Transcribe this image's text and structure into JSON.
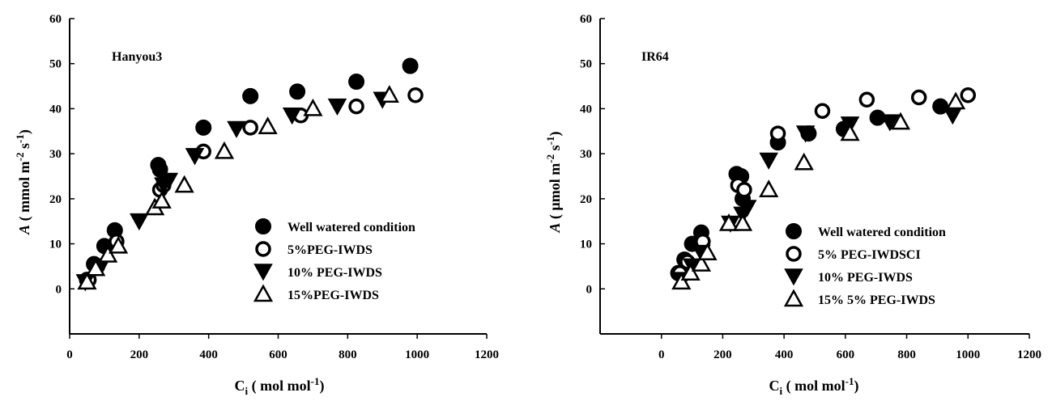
{
  "chart_data": [
    {
      "type": "scatter",
      "title": "Hanyou3",
      "xlabel": "Ci ( mol mol-1)",
      "xlabel_parts": {
        "main": "C",
        "sub": "i",
        "rest": " ( mol mol",
        "sup": "-1",
        "end": ")"
      },
      "ylabel": "A ( mmol m-2 s-1)",
      "ylabel_parts": {
        "italic": "A",
        "main": " ( mmol m",
        "sup1": "-2",
        "mid": " s",
        "sup2": "-1",
        "end": ")"
      },
      "xlim": [
        0,
        1200
      ],
      "ylim": [
        -10,
        60
      ],
      "xticks": [
        "0",
        "200",
        "400",
        "600",
        "800",
        "1000",
        "1200"
      ],
      "yticks": [
        "0",
        "10",
        "20",
        "30",
        "40",
        "50",
        "60"
      ],
      "legend_position": "lower-right",
      "series": [
        {
          "name": "Well watered condition",
          "marker": "filled-circle",
          "points": [
            [
              50,
              2
            ],
            [
              70,
              5.5
            ],
            [
              100,
              9.5
            ],
            [
              130,
              13
            ],
            [
              255,
              27.5
            ],
            [
              260,
              26.5
            ],
            [
              385,
              35.8
            ],
            [
              520,
              42.8
            ],
            [
              655,
              43.8
            ],
            [
              825,
              46
            ],
            [
              980,
              49.5
            ]
          ]
        },
        {
          "name": "5%PEG-IWDS",
          "marker": "open-circle",
          "points": [
            [
              55,
              2
            ],
            [
              80,
              5
            ],
            [
              135,
              10.5
            ],
            [
              260,
              22
            ],
            [
              270,
              23
            ],
            [
              385,
              30.5
            ],
            [
              520,
              35.8
            ],
            [
              665,
              38.5
            ],
            [
              825,
              40.5
            ],
            [
              995,
              43
            ]
          ]
        },
        {
          "name": "10% PEG-IWDS",
          "marker": "filled-triangle-down",
          "points": [
            [
              45,
              1.5
            ],
            [
              90,
              5
            ],
            [
              200,
              15
            ],
            [
              270,
              23
            ],
            [
              285,
              24
            ],
            [
              360,
              29.5
            ],
            [
              480,
              35.5
            ],
            [
              640,
              38.5
            ],
            [
              770,
              40.5
            ],
            [
              900,
              42
            ]
          ]
        },
        {
          "name": "15%PEG-IWDS",
          "marker": "open-triangle-up",
          "points": [
            [
              50,
              1.5
            ],
            [
              75,
              4.5
            ],
            [
              110,
              7.5
            ],
            [
              140,
              9.5
            ],
            [
              245,
              18
            ],
            [
              265,
              19.5
            ],
            [
              330,
              23
            ],
            [
              445,
              30.5
            ],
            [
              570,
              36
            ],
            [
              700,
              40
            ],
            [
              920,
              43
            ]
          ]
        }
      ]
    },
    {
      "type": "scatter",
      "title": "IR64",
      "xlabel": "Ci ( mol mol-1)",
      "xlabel_parts": {
        "main": "C",
        "sub": "i",
        "rest": " ( mol mol",
        "sup": "-1",
        "end": ")"
      },
      "ylabel": "A ( μmol m-2 s-1)",
      "ylabel_parts": {
        "italic": "A",
        "main": " ( μmol m",
        "sup1": "-2",
        "mid": " s",
        "sup2": "-1",
        "end": ")"
      },
      "xlim": [
        -200,
        1200
      ],
      "ylim": [
        -10,
        60
      ],
      "xticks": [
        "0",
        "200",
        "400",
        "600",
        "800",
        "1000",
        "1200"
      ],
      "yticks": [
        "0",
        "10",
        "20",
        "30",
        "40",
        "50",
        "60"
      ],
      "legend_position": "lower-right",
      "series": [
        {
          "name": "Well watered condition",
          "marker": "filled-circle",
          "points": [
            [
              55,
              3.5
            ],
            [
              75,
              6.5
            ],
            [
              100,
              10
            ],
            [
              130,
              12.5
            ],
            [
              245,
              25.5
            ],
            [
              260,
              25
            ],
            [
              265,
              20
            ],
            [
              380,
              32.5
            ],
            [
              480,
              34.5
            ],
            [
              595,
              35.5
            ],
            [
              705,
              38
            ],
            [
              910,
              40.5
            ]
          ]
        },
        {
          "name": "5% PEG-IWDSCI",
          "marker": "open-circle",
          "points": [
            [
              60,
              3.5
            ],
            [
              85,
              6
            ],
            [
              135,
              10.5
            ],
            [
              250,
              23
            ],
            [
              270,
              22
            ],
            [
              380,
              34.5
            ],
            [
              525,
              39.5
            ],
            [
              670,
              42
            ],
            [
              840,
              42.5
            ],
            [
              1000,
              43
            ]
          ]
        },
        {
          "name": "10% PEG-IWDS",
          "marker": "filled-triangle-down",
          "points": [
            [
              70,
              2
            ],
            [
              100,
              5
            ],
            [
              130,
              8
            ],
            [
              225,
              14.5
            ],
            [
              265,
              16.5
            ],
            [
              280,
              18
            ],
            [
              350,
              28.5
            ],
            [
              470,
              34.5
            ],
            [
              615,
              36.5
            ],
            [
              745,
              37
            ],
            [
              950,
              38.5
            ]
          ]
        },
        {
          "name": "15% 5% PEG-IWDS",
          "marker": "open-triangle-up",
          "points": [
            [
              65,
              1.5
            ],
            [
              95,
              3.5
            ],
            [
              130,
              5.5
            ],
            [
              150,
              8
            ],
            [
              220,
              14.5
            ],
            [
              265,
              14.5
            ],
            [
              350,
              22
            ],
            [
              465,
              28
            ],
            [
              615,
              34.5
            ],
            [
              780,
              37
            ],
            [
              960,
              41.5
            ]
          ]
        }
      ]
    }
  ]
}
